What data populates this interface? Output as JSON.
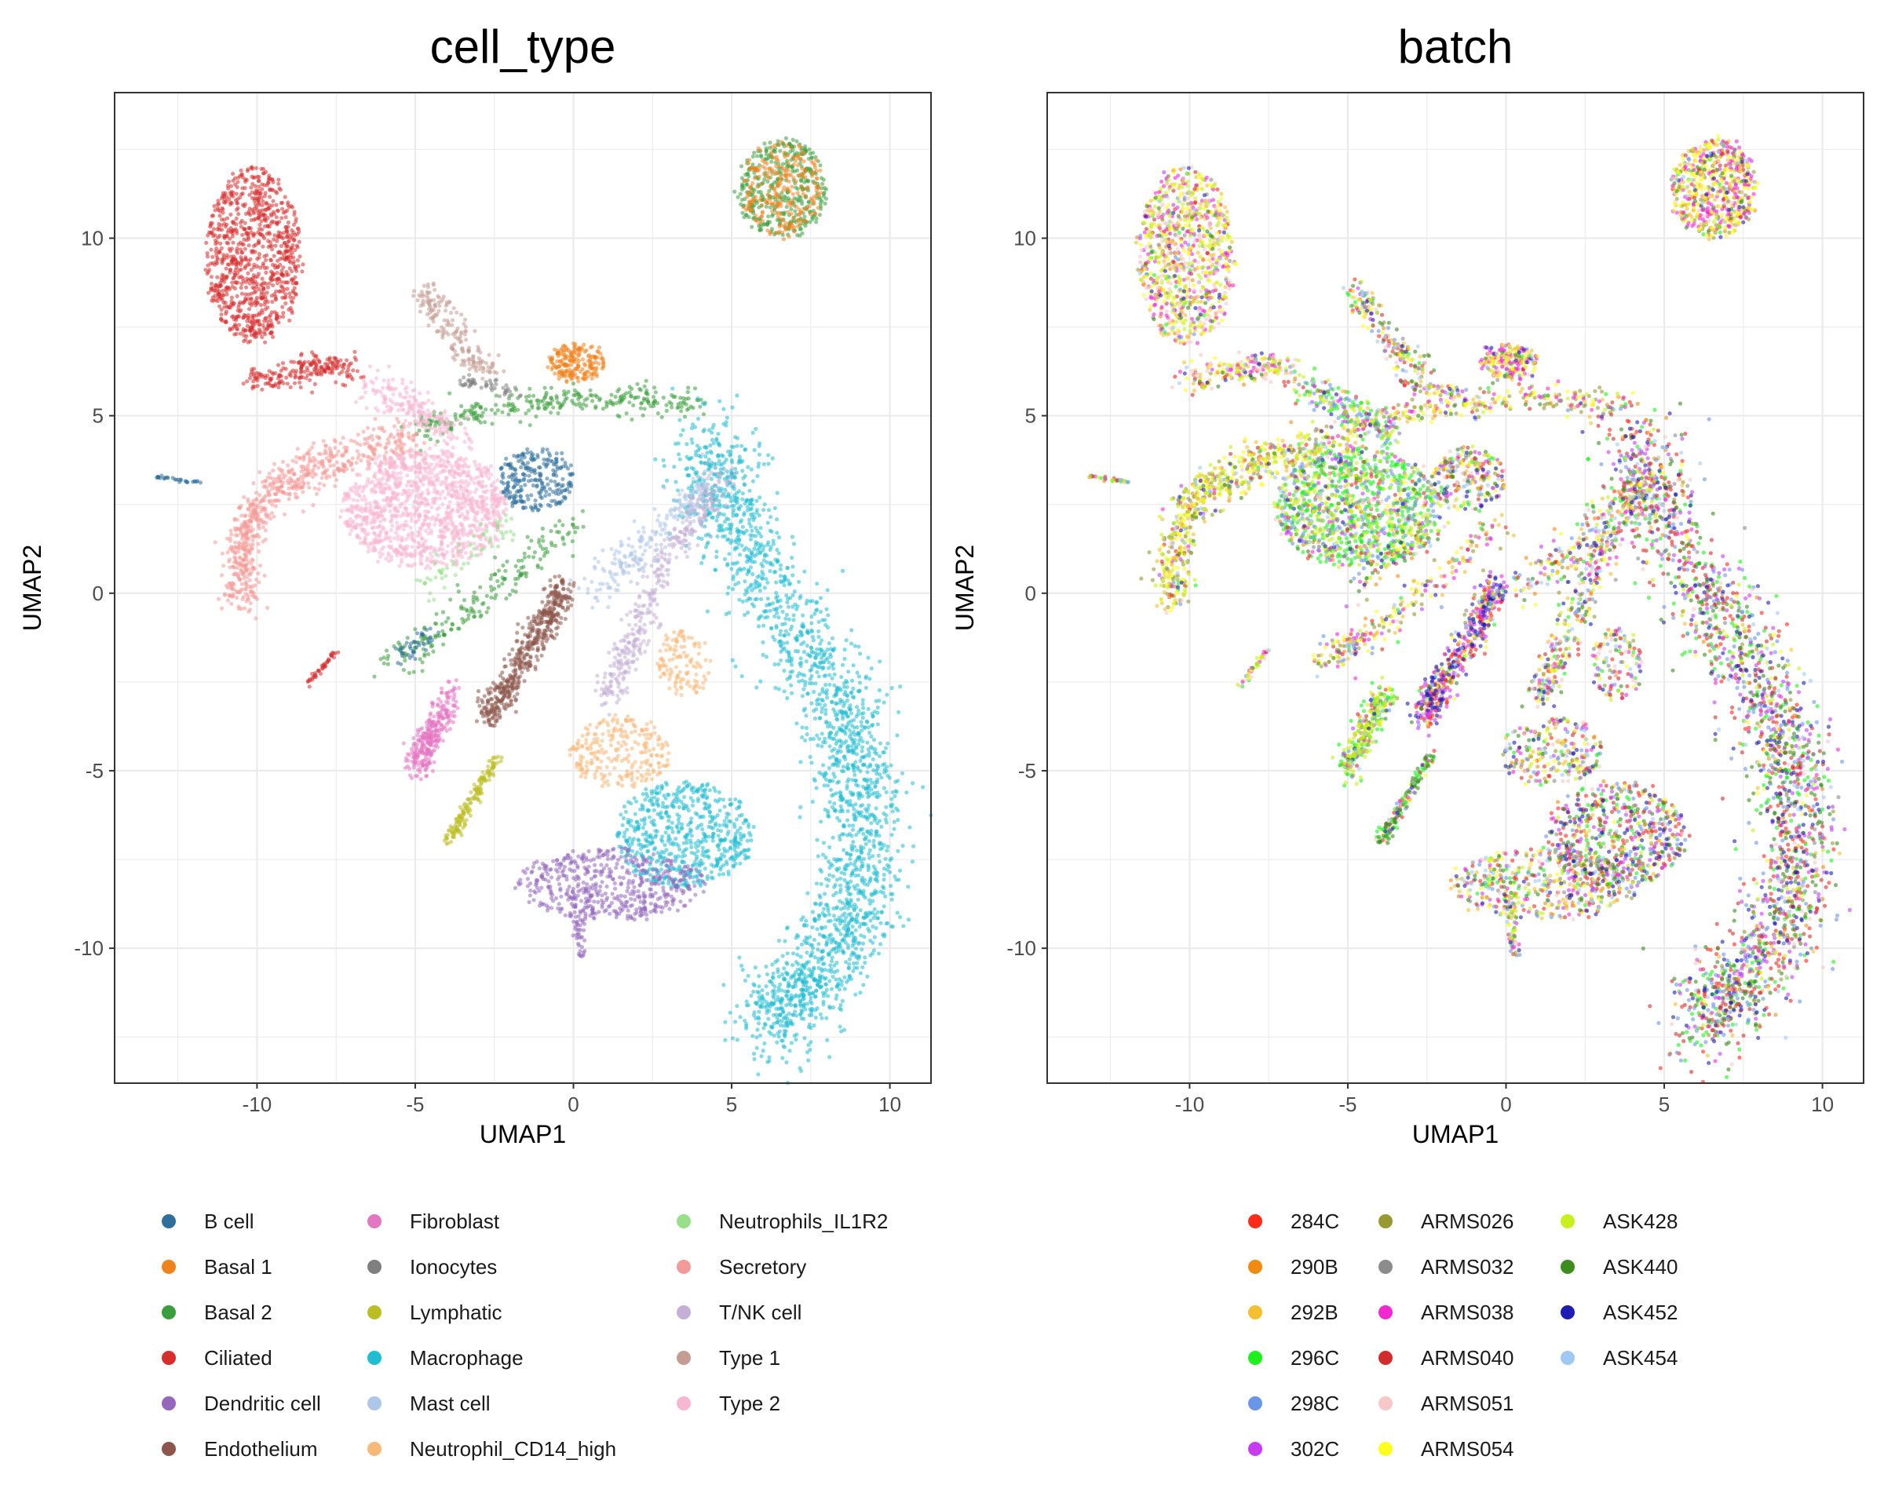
{
  "chart_data": [
    {
      "type": "scatter",
      "title": "cell_type",
      "xlabel": "UMAP1",
      "ylabel": "UMAP2",
      "xlim": [
        -14.5,
        11.3
      ],
      "ylim": [
        -13.8,
        14.1
      ],
      "xticks": [
        -10,
        -5,
        0,
        5,
        10
      ],
      "yticks": [
        -10,
        -5,
        0,
        5,
        10
      ],
      "xtick_labels": [
        "-10",
        "-5",
        "0",
        "5",
        "10"
      ],
      "ytick_labels": [
        "-10",
        "-5",
        "0",
        "5",
        "10"
      ],
      "grid": true,
      "legend_position": "bottom",
      "series": [
        {
          "name": "B cell",
          "color": "#2f6f9c"
        },
        {
          "name": "Basal 1",
          "color": "#f0821c"
        },
        {
          "name": "Basal 2",
          "color": "#3a9e3a"
        },
        {
          "name": "Ciliated",
          "color": "#d62d2d"
        },
        {
          "name": "Dendritic cell",
          "color": "#9467bd"
        },
        {
          "name": "Endothelium",
          "color": "#8c564b"
        },
        {
          "name": "Fibroblast",
          "color": "#e377c2"
        },
        {
          "name": "Ionocytes",
          "color": "#7f7f7f"
        },
        {
          "name": "Lymphatic",
          "color": "#bcbd22"
        },
        {
          "name": "Macrophage",
          "color": "#1fbcd2"
        },
        {
          "name": "Mast cell",
          "color": "#aec7e8"
        },
        {
          "name": "Neutrophil_CD14_high",
          "color": "#f7b878"
        },
        {
          "name": "Neutrophils_IL1R2",
          "color": "#98df8a"
        },
        {
          "name": "Secretory",
          "color": "#f49a98"
        },
        {
          "name": "T/NK cell",
          "color": "#c5b0d5"
        },
        {
          "name": "Type 1",
          "color": "#c49c94"
        },
        {
          "name": "Type 2",
          "color": "#f7b6d2"
        }
      ]
    },
    {
      "type": "scatter",
      "title": "batch",
      "xlabel": "UMAP1",
      "ylabel": "UMAP2",
      "xlim": [
        -14.5,
        11.3
      ],
      "ylim": [
        -13.8,
        14.1
      ],
      "xticks": [
        -10,
        -5,
        0,
        5,
        10
      ],
      "yticks": [
        -10,
        -5,
        0,
        5,
        10
      ],
      "xtick_labels": [
        "-10",
        "-5",
        "0",
        "5",
        "10"
      ],
      "ytick_labels": [
        "-10",
        "-5",
        "0",
        "5",
        "10"
      ],
      "grid": true,
      "legend_position": "bottom",
      "series": [
        {
          "name": "284C",
          "color": "#ff2a1a"
        },
        {
          "name": "290B",
          "color": "#f08a10"
        },
        {
          "name": "292B",
          "color": "#f4c030"
        },
        {
          "name": "296C",
          "color": "#1ef01e"
        },
        {
          "name": "298C",
          "color": "#6a96e8"
        },
        {
          "name": "302C",
          "color": "#c83cf0"
        },
        {
          "name": "ARMS026",
          "color": "#999933"
        },
        {
          "name": "ARMS032",
          "color": "#8c8c8c"
        },
        {
          "name": "ARMS038",
          "color": "#f028d2"
        },
        {
          "name": "ARMS040",
          "color": "#d22d2d"
        },
        {
          "name": "ARMS051",
          "color": "#f7c8c8"
        },
        {
          "name": "ARMS054",
          "color": "#ffff1e"
        },
        {
          "name": "ASK428",
          "color": "#c8f01e"
        },
        {
          "name": "ASK440",
          "color": "#3c8c1e"
        },
        {
          "name": "ASK452",
          "color": "#1e1eb4"
        },
        {
          "name": "ASK454",
          "color": "#a0c8f0"
        }
      ]
    }
  ]
}
